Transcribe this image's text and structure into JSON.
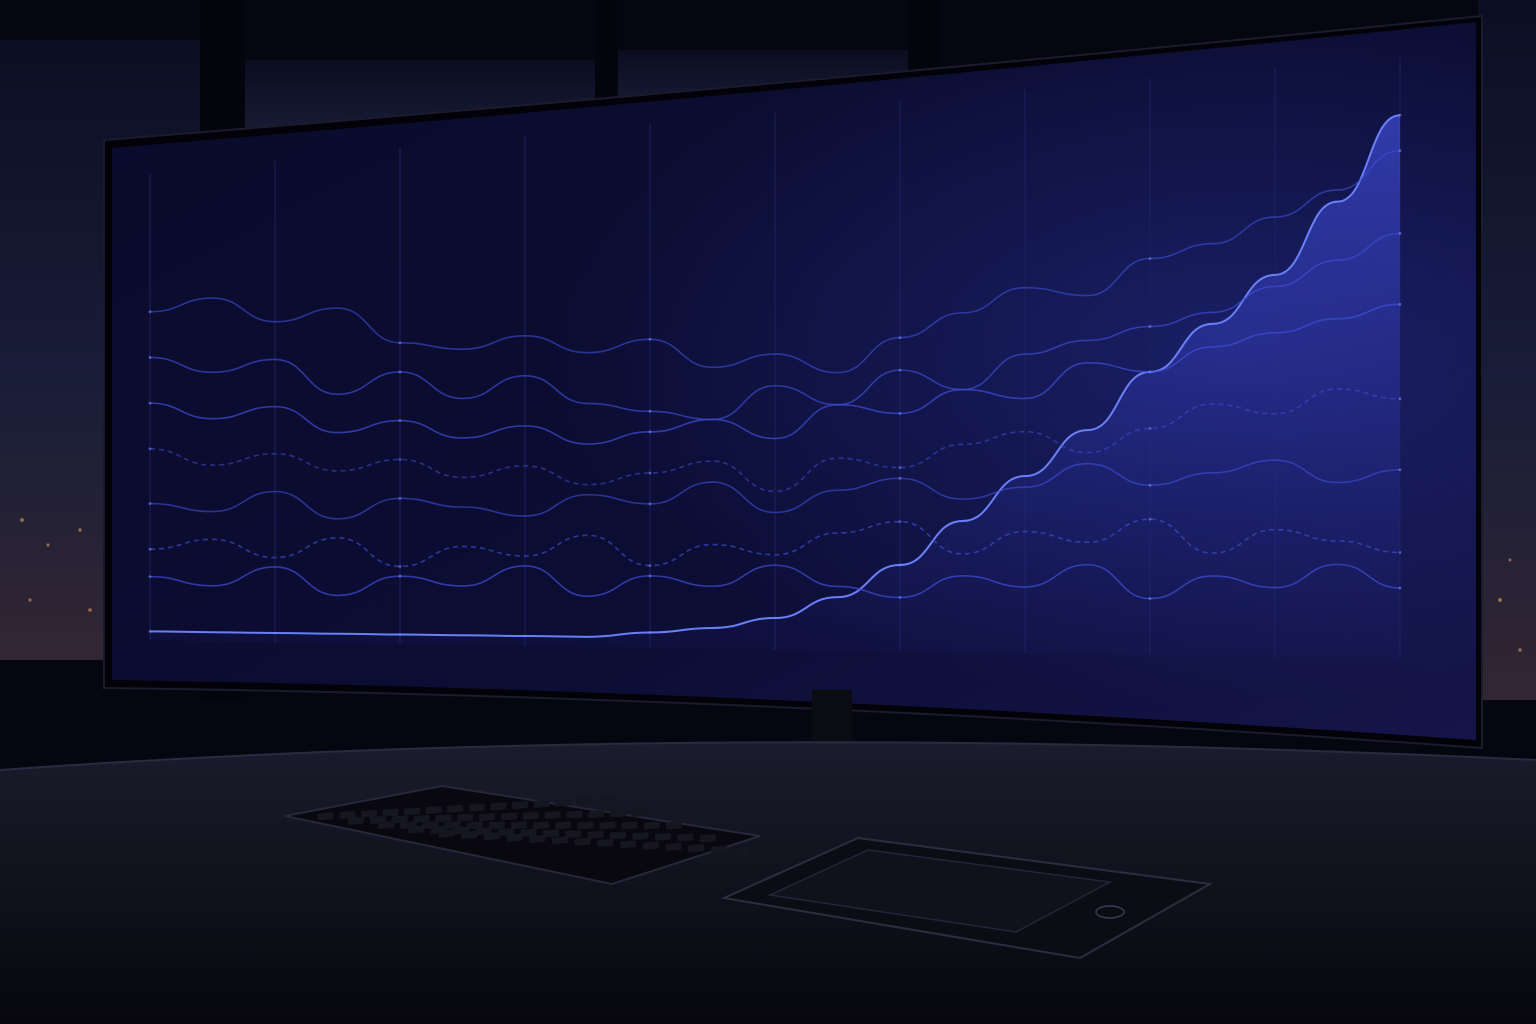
{
  "scene": {
    "description_free": true,
    "palette": {
      "room": "#05060f",
      "window_sky": "#1a1f3d",
      "city_glow": "#c98a4a",
      "screen_bg": "#0a0b2e",
      "line_color": "#3f4fd8",
      "highlight": "#6f86ff",
      "desk": "#141524"
    },
    "icons": [
      "monitor-icon",
      "keyboard-icon",
      "drawing-tablet-icon"
    ]
  },
  "chart_data": {
    "type": "line",
    "x": [
      0,
      1,
      2,
      3,
      4,
      5,
      6,
      7,
      8,
      9,
      10,
      11,
      12,
      13,
      14,
      15,
      16,
      17,
      18,
      19,
      20
    ],
    "series": [
      {
        "values": [
          2,
          2,
          2,
          2,
          2,
          2,
          2,
          2,
          3,
          4,
          6,
          10,
          16,
          24,
          32,
          40,
          50,
          58,
          66,
          78,
          92
        ],
        "area": true
      },
      {
        "values": [
          72,
          74,
          68,
          70,
          62,
          60,
          62,
          58,
          60,
          54,
          56,
          52,
          58,
          62,
          66,
          64,
          70,
          72,
          76,
          80,
          86
        ]
      },
      {
        "values": [
          62,
          58,
          60,
          52,
          56,
          50,
          54,
          48,
          46,
          44,
          50,
          46,
          52,
          48,
          54,
          56,
          58,
          60,
          64,
          68,
          72
        ]
      },
      {
        "values": [
          52,
          48,
          50,
          44,
          46,
          42,
          44,
          40,
          42,
          44,
          40,
          46,
          44,
          48,
          46,
          52,
          50,
          54,
          56,
          58,
          60
        ]
      },
      {
        "values": [
          42,
          38,
          40,
          36,
          38,
          34,
          36,
          32,
          34,
          36,
          30,
          36,
          34,
          38,
          40,
          36,
          40,
          44,
          42,
          46,
          44
        ],
        "dashed": true
      },
      {
        "values": [
          30,
          28,
          32,
          26,
          30,
          28,
          26,
          30,
          28,
          32,
          26,
          30,
          32,
          28,
          30,
          34,
          30,
          32,
          34,
          30,
          32
        ]
      },
      {
        "values": [
          20,
          22,
          18,
          22,
          16,
          20,
          18,
          22,
          16,
          20,
          18,
          22,
          24,
          18,
          22,
          20,
          24,
          18,
          22,
          20,
          18
        ],
        "dashed": true
      },
      {
        "values": [
          14,
          12,
          16,
          10,
          14,
          12,
          16,
          10,
          14,
          12,
          16,
          12,
          10,
          14,
          12,
          16,
          10,
          14,
          12,
          16,
          12
        ]
      }
    ],
    "ylim": [
      0,
      100
    ]
  }
}
